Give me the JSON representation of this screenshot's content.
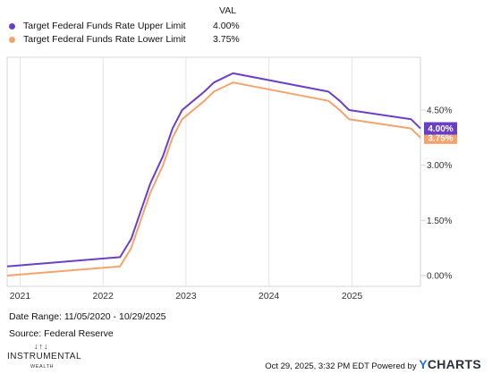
{
  "legend": {
    "header": "VAL",
    "items": [
      {
        "name": "Target Federal Funds Rate Upper Limit",
        "value": "4.00%",
        "color": "#6a3fc8"
      },
      {
        "name": "Target Federal Funds Rate Lower Limit",
        "value": "3.75%",
        "color": "#f5a36c"
      }
    ]
  },
  "chart_data": {
    "type": "line",
    "title": "",
    "xlabel": "",
    "ylabel": "",
    "x_ticks": [
      "2021",
      "2022",
      "2023",
      "2024",
      "2025"
    ],
    "y_ticks": [
      "0.00%",
      "1.50%",
      "3.00%",
      "4.50%"
    ],
    "xlim": [
      "2020-11-05",
      "2025-10-29"
    ],
    "ylim": [
      0,
      5.9
    ],
    "grid": "vertical",
    "series": [
      {
        "name": "Target Federal Funds Rate Upper Limit",
        "color": "#6a3fc8",
        "end_label": "4.00%",
        "x": [
          "2020-11-05",
          "2022-03-17",
          "2022-05-05",
          "2022-06-16",
          "2022-07-28",
          "2022-09-22",
          "2022-11-03",
          "2022-12-15",
          "2023-02-02",
          "2023-03-23",
          "2023-05-04",
          "2023-07-27",
          "2024-09-19",
          "2024-11-08",
          "2024-12-19",
          "2025-09-18",
          "2025-10-29"
        ],
        "values": [
          0.25,
          0.5,
          1.0,
          1.75,
          2.5,
          3.25,
          4.0,
          4.5,
          4.75,
          5.0,
          5.25,
          5.5,
          5.0,
          4.75,
          4.5,
          4.25,
          4.0
        ]
      },
      {
        "name": "Target Federal Funds Rate Lower Limit",
        "color": "#f5a36c",
        "end_label": "3.75%",
        "x": [
          "2020-11-05",
          "2022-03-17",
          "2022-05-05",
          "2022-06-16",
          "2022-07-28",
          "2022-09-22",
          "2022-11-03",
          "2022-12-15",
          "2023-02-02",
          "2023-03-23",
          "2023-05-04",
          "2023-07-27",
          "2024-09-19",
          "2024-11-08",
          "2024-12-19",
          "2025-09-18",
          "2025-10-29"
        ],
        "values": [
          0.0,
          0.25,
          0.75,
          1.5,
          2.25,
          3.0,
          3.75,
          4.25,
          4.5,
          4.75,
          5.0,
          5.25,
          4.75,
          4.5,
          4.25,
          4.0,
          3.75
        ]
      }
    ]
  },
  "date_range": "Date Range: 11/05/2020 - 10/29/2025",
  "source": "Source: Federal Reserve",
  "brand": {
    "arrows": "↓↑↓",
    "name": "INSTRUMENTAL",
    "sub": "WEALTH"
  },
  "footer": {
    "timestamp": "Oct 29, 2025, 3:32 PM EDT Powered by",
    "logo_y": "Y",
    "logo_rest": "CHARTS"
  }
}
